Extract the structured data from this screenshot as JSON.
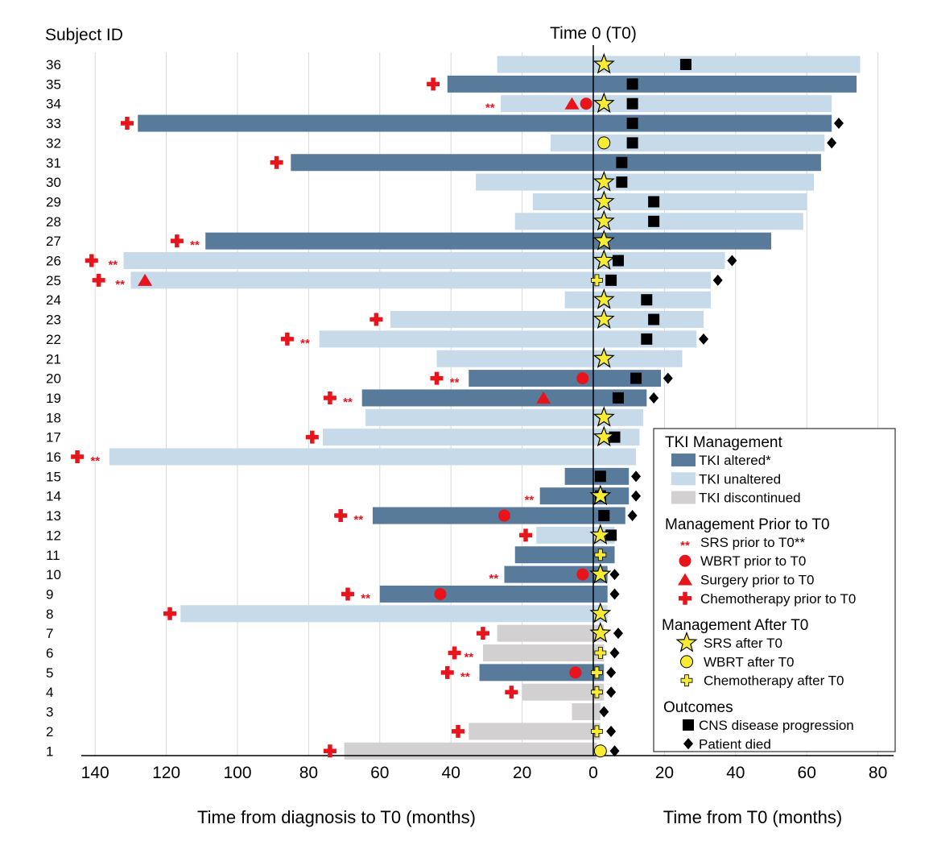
{
  "chart_data": {
    "type": "swimmer",
    "title": "Time 0 (T0)",
    "ylabel": "Subject ID",
    "xlabel_left": "Time from diagnosis to T0 (months)",
    "xlabel_right": "Time from T0 (months)",
    "x_range": [
      -143,
      82
    ],
    "x_ticks": [
      -140,
      -120,
      -100,
      -80,
      -60,
      -40,
      -20,
      0,
      20,
      40,
      60,
      80
    ],
    "x_tick_labels": [
      "140",
      "120",
      "100",
      "80",
      "60",
      "40",
      "20",
      "0",
      "20",
      "40",
      "60",
      "80"
    ],
    "colors": {
      "altered": "#587a9b",
      "unaltered": "#c6daea",
      "discontinued": "#d2d0d0",
      "red": "#e8141c",
      "yellow": "#f7ec33",
      "black": "#000000",
      "gridline": "#d9d9d9"
    },
    "legend": {
      "sections": [
        {
          "title": "TKI Management",
          "items": [
            {
              "symbol": "bar-altered",
              "label": "TKI altered*"
            },
            {
              "symbol": "bar-unaltered",
              "label": "TKI unaltered"
            },
            {
              "symbol": "bar-discontinued",
              "label": "TKI discontinued"
            }
          ]
        },
        {
          "title": "Management Prior to T0",
          "items": [
            {
              "symbol": "srs-prior",
              "label": "SRS prior to T0**",
              "glyph": "**"
            },
            {
              "symbol": "wbrt-prior",
              "label": "WBRT prior to T0"
            },
            {
              "symbol": "surgery-prior",
              "label": "Surgery prior to T0"
            },
            {
              "symbol": "chemo-prior",
              "label": "Chemotherapy prior to T0"
            }
          ]
        },
        {
          "title": "Management After T0",
          "items": [
            {
              "symbol": "srs-after",
              "label": "SRS after T0"
            },
            {
              "symbol": "wbrt-after",
              "label": "WBRT after T0"
            },
            {
              "symbol": "chemo-after",
              "label": "Chemotherapy after T0"
            }
          ]
        },
        {
          "title": "Outcomes",
          "items": [
            {
              "symbol": "progression",
              "label": "CNS disease progression"
            },
            {
              "symbol": "died",
              "label": "Patient died"
            }
          ]
        }
      ]
    },
    "subjects": [
      {
        "id": 36,
        "tki": "unaltered",
        "start": -27,
        "end": 75,
        "srs_after": 3,
        "progression": 26
      },
      {
        "id": 35,
        "tki": "altered",
        "start": -41,
        "end": 74,
        "chemo_prior": -45,
        "progression": 11
      },
      {
        "id": 34,
        "tki": "unaltered",
        "start": -26,
        "end": 67,
        "srs_prior": -29,
        "surgery_prior": -6,
        "wbrt_prior": -2,
        "srs_after": 3,
        "progression": 11
      },
      {
        "id": 33,
        "tki": "altered",
        "start": -128,
        "end": 67,
        "chemo_prior": -131,
        "progression": 11,
        "died": 69
      },
      {
        "id": 32,
        "tki": "unaltered",
        "start": -12,
        "end": 65,
        "wbrt_after": 3,
        "progression": 11,
        "died": 67
      },
      {
        "id": 31,
        "tki": "altered",
        "start": -85,
        "end": 64,
        "chemo_prior": -89,
        "progression": 8
      },
      {
        "id": 30,
        "tki": "unaltered",
        "start": -33,
        "end": 62,
        "srs_after": 3,
        "progression": 8
      },
      {
        "id": 29,
        "tki": "unaltered",
        "start": -17,
        "end": 60,
        "srs_after": 3,
        "progression": 17
      },
      {
        "id": 28,
        "tki": "unaltered",
        "start": -22,
        "end": 59,
        "srs_after": 3,
        "progression": 17
      },
      {
        "id": 27,
        "tki": "altered",
        "start": -109,
        "end": 50,
        "chemo_prior": -117,
        "srs_prior": -112,
        "srs_after": 3
      },
      {
        "id": 26,
        "tki": "unaltered",
        "start": -132,
        "end": 37,
        "chemo_prior": -141,
        "srs_prior": -135,
        "srs_after": 3,
        "progression": 7,
        "died": 39
      },
      {
        "id": 25,
        "tki": "unaltered",
        "start": -130,
        "end": 33,
        "chemo_prior": -139,
        "srs_prior": -133,
        "surgery_prior": -126,
        "chemo_after": 1,
        "progression": 5,
        "died": 35
      },
      {
        "id": 24,
        "tki": "unaltered",
        "start": -8,
        "end": 33,
        "srs_after": 3,
        "progression": 15
      },
      {
        "id": 23,
        "tki": "unaltered",
        "start": -57,
        "end": 31,
        "chemo_prior": -61,
        "srs_after": 3,
        "progression": 17
      },
      {
        "id": 22,
        "tki": "unaltered",
        "start": -77,
        "end": 29,
        "chemo_prior": -86,
        "srs_prior": -81,
        "progression": 15,
        "died": 31
      },
      {
        "id": 21,
        "tki": "unaltered",
        "start": -44,
        "end": 25,
        "srs_after": 3
      },
      {
        "id": 20,
        "tki": "altered",
        "start": -35,
        "end": 19,
        "chemo_prior": -44,
        "srs_prior": -39,
        "wbrt_prior": -3,
        "progression": 12,
        "died": 21
      },
      {
        "id": 19,
        "tki": "altered",
        "start": -65,
        "end": 15,
        "chemo_prior": -74,
        "srs_prior": -69,
        "surgery_prior": -14,
        "progression": 7,
        "died": 17
      },
      {
        "id": 18,
        "tki": "unaltered",
        "start": -64,
        "end": 14,
        "srs_after": 3
      },
      {
        "id": 17,
        "tki": "unaltered",
        "start": -76,
        "end": 13,
        "chemo_prior": -79,
        "progression": 6,
        "srs_after": 3
      },
      {
        "id": 16,
        "tki": "unaltered",
        "start": -136,
        "end": 12,
        "chemo_prior": -145,
        "srs_prior": -140
      },
      {
        "id": 15,
        "tki": "altered",
        "start": -8,
        "end": 10,
        "progression": 2,
        "died": 12
      },
      {
        "id": 14,
        "tki": "altered",
        "start": -15,
        "end": 10,
        "srs_prior": -18,
        "srs_after": 2,
        "progression": 2,
        "died": 12
      },
      {
        "id": 13,
        "tki": "altered",
        "start": -62,
        "end": 9,
        "chemo_prior": -71,
        "srs_prior": -66,
        "wbrt_prior": -25,
        "progression": 3,
        "died": 11
      },
      {
        "id": 12,
        "tki": "unaltered",
        "start": -16,
        "end": 6,
        "chemo_prior": -19,
        "srs_after": 2,
        "progression": 5
      },
      {
        "id": 11,
        "tki": "altered",
        "start": -22,
        "end": 6,
        "chemo_after": 2
      },
      {
        "id": 10,
        "tki": "altered",
        "start": -25,
        "end": 4,
        "srs_prior": -28,
        "wbrt_prior": -3,
        "srs_after": 2,
        "died": 6
      },
      {
        "id": 9,
        "tki": "altered",
        "start": -60,
        "end": 4,
        "chemo_prior": -69,
        "srs_prior": -64,
        "wbrt_prior": -43,
        "died": 6
      },
      {
        "id": 8,
        "tki": "unaltered",
        "start": -116,
        "end": 4,
        "chemo_prior": -119,
        "srs_after": 2
      },
      {
        "id": 7,
        "tki": "discontinued",
        "start": -27,
        "end": 3,
        "chemo_prior": -31,
        "srs_after": 2,
        "died": 7
      },
      {
        "id": 6,
        "tki": "discontinued",
        "start": -31,
        "end": 3,
        "chemo_prior": -39,
        "srs_prior": -35,
        "chemo_after": 2,
        "died": 6
      },
      {
        "id": 5,
        "tki": "altered",
        "start": -32,
        "end": 3,
        "chemo_prior": -41,
        "srs_prior": -36,
        "wbrt_prior": -5,
        "chemo_after": 1,
        "died": 5
      },
      {
        "id": 4,
        "tki": "discontinued",
        "start": -20,
        "end": 3,
        "chemo_prior": -23,
        "chemo_after": 1,
        "died": 5
      },
      {
        "id": 3,
        "tki": "discontinued",
        "start": -6,
        "end": 2,
        "died": 3
      },
      {
        "id": 2,
        "tki": "discontinued",
        "start": -35,
        "end": 2,
        "chemo_prior": -38,
        "chemo_after": 1,
        "died": 5
      },
      {
        "id": 1,
        "tki": "discontinued",
        "start": -70,
        "end": 1,
        "chemo_prior": -74,
        "wbrt_after": 2,
        "died": 6
      }
    ]
  }
}
